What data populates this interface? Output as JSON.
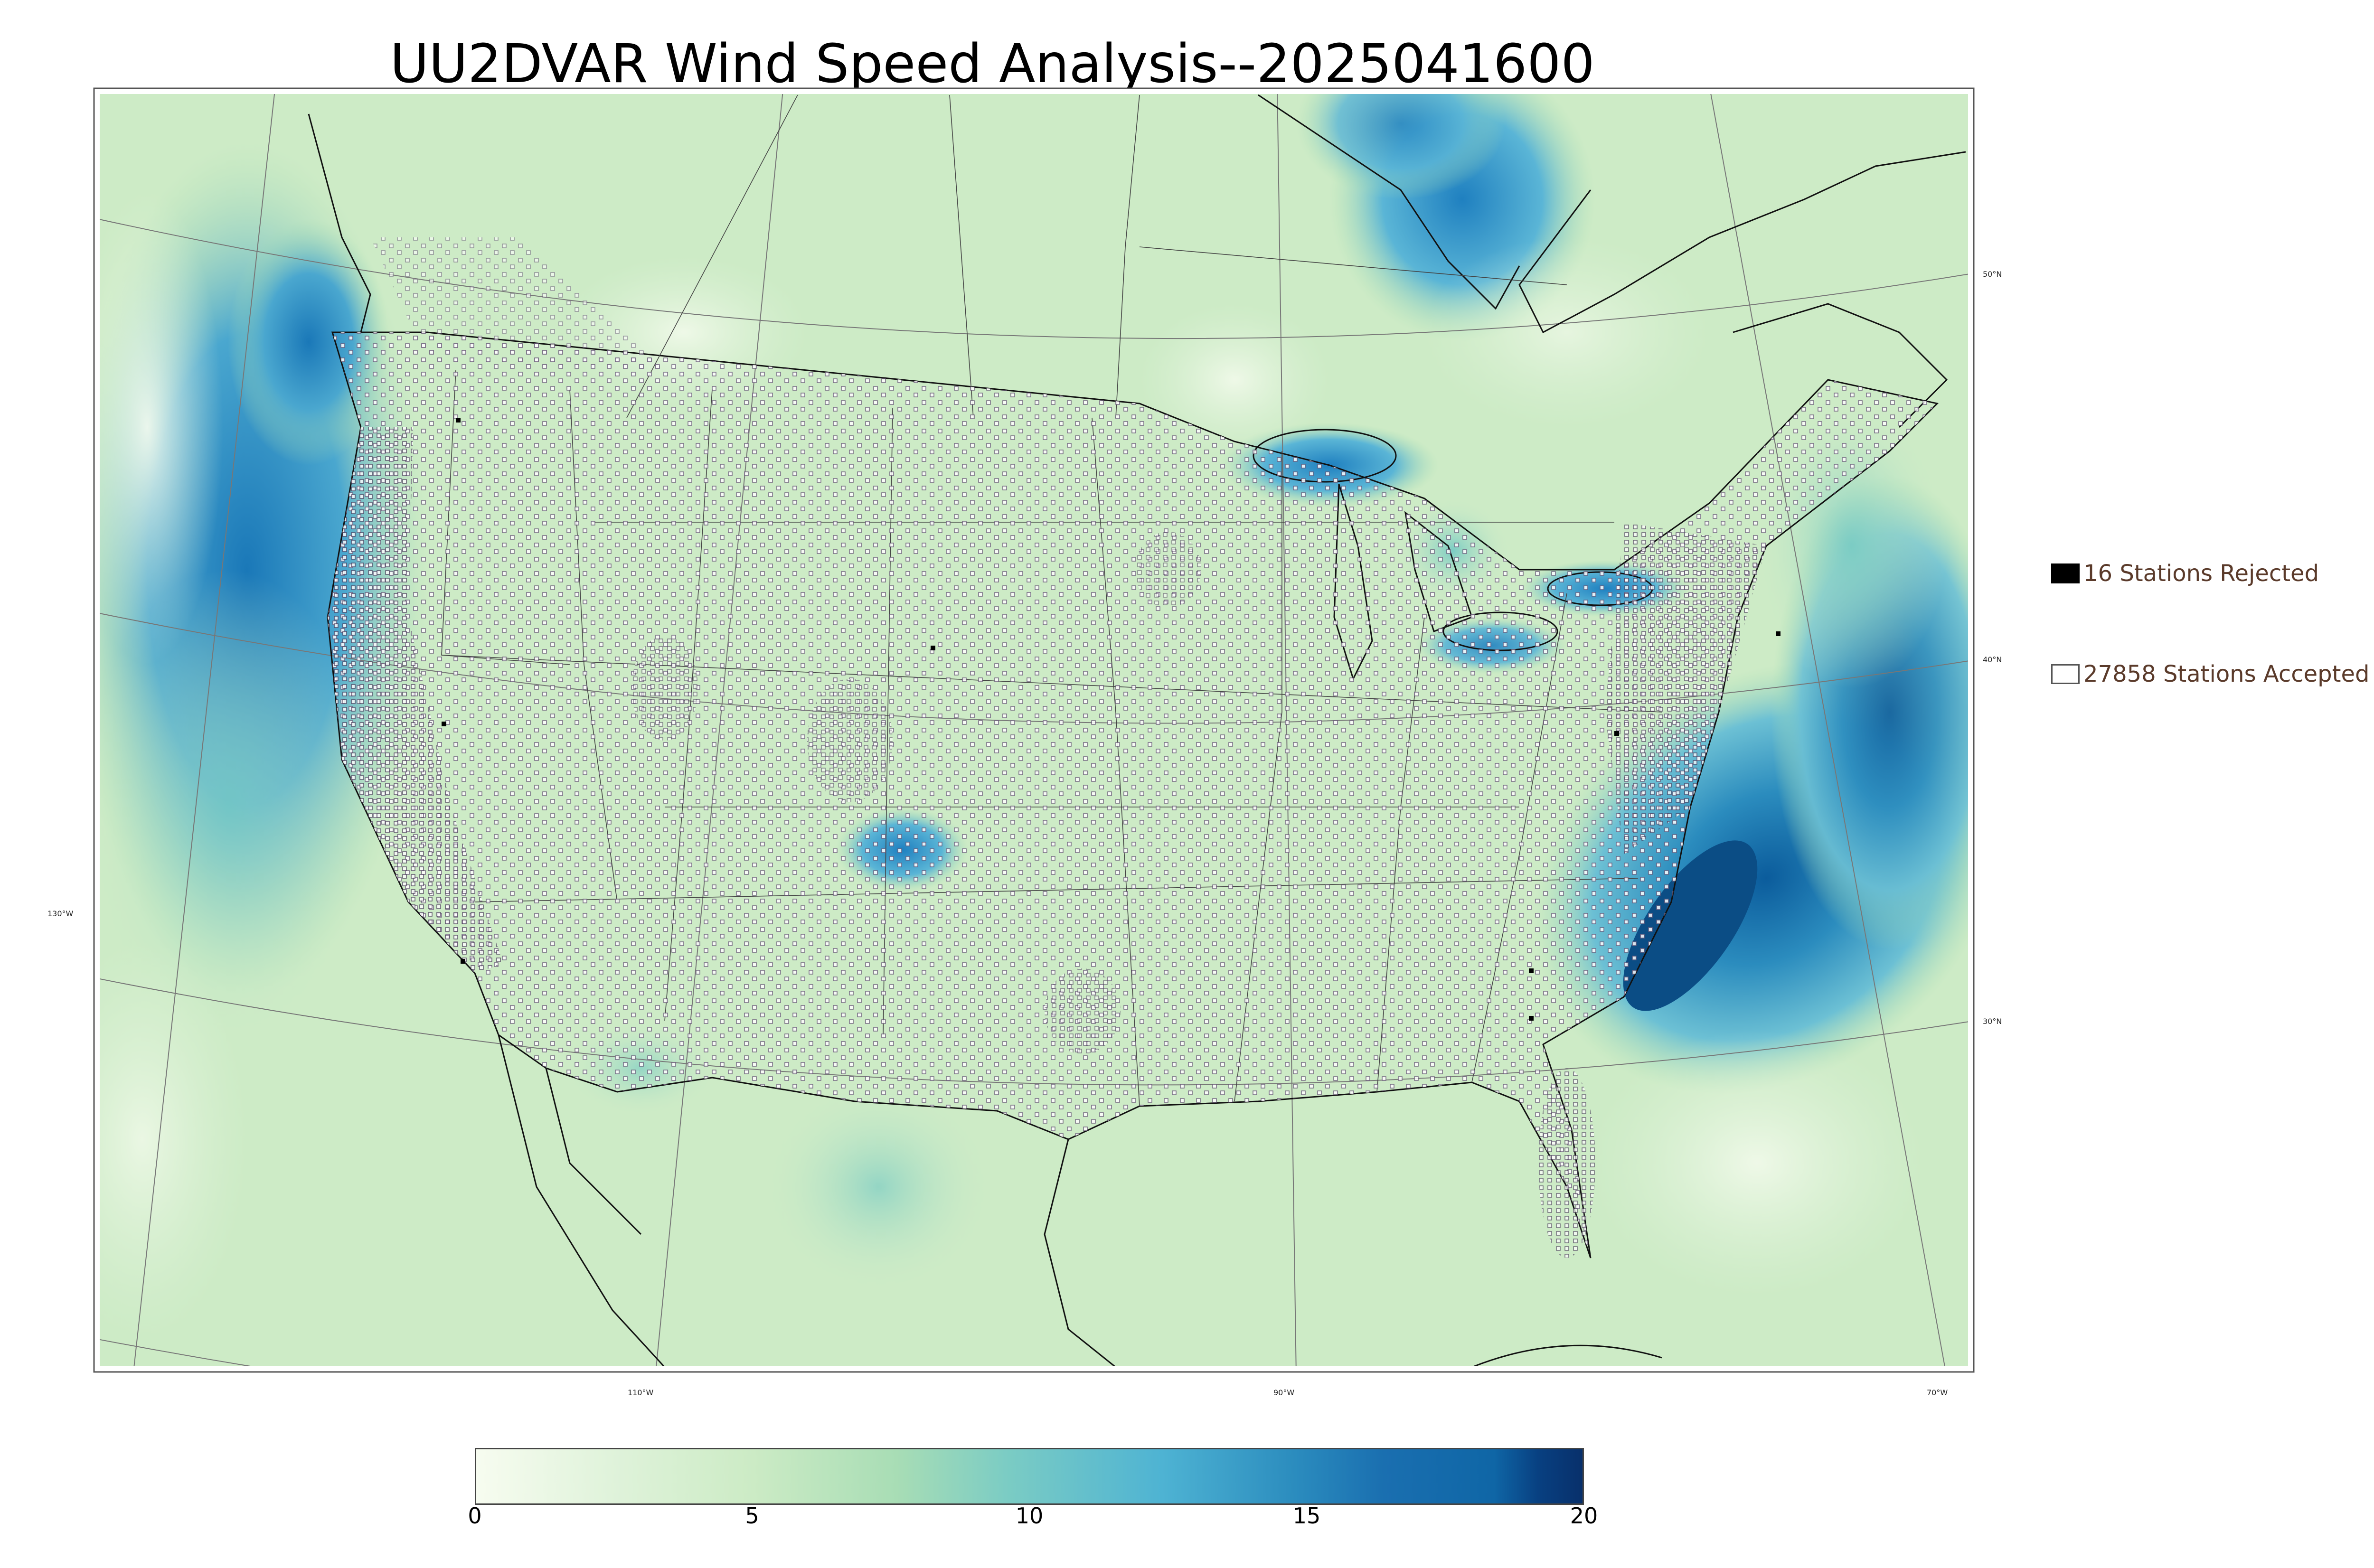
{
  "title": "UU2DVAR Wind Speed Analysis--2025041600",
  "legend": {
    "rejected": {
      "label": "16 Stations Rejected",
      "color": "#000000"
    },
    "accepted": {
      "label": "27858 Stations Accepted",
      "color": "#ffffff"
    }
  },
  "graticule": {
    "lat_labels": [
      "50°N",
      "40°N",
      "30°N"
    ],
    "lon_labels": [
      "130°W",
      "110°W",
      "90°W",
      "70°W"
    ]
  },
  "colorbar": {
    "ticks": [
      "0",
      "5",
      "10",
      "15",
      "20"
    ],
    "min": 0,
    "max": 20,
    "colors": [
      "#f7fcf0",
      "#e0f3db",
      "#ccebc5",
      "#a8ddb5",
      "#7bccc4",
      "#4eb3d3",
      "#2b8cbe",
      "#0868ac",
      "#084081"
    ]
  },
  "map": {
    "regions": [
      "conus",
      "canada",
      "mexico",
      "atlantic",
      "pacific",
      "gulf-of-mexico",
      "great-lakes"
    ]
  }
}
